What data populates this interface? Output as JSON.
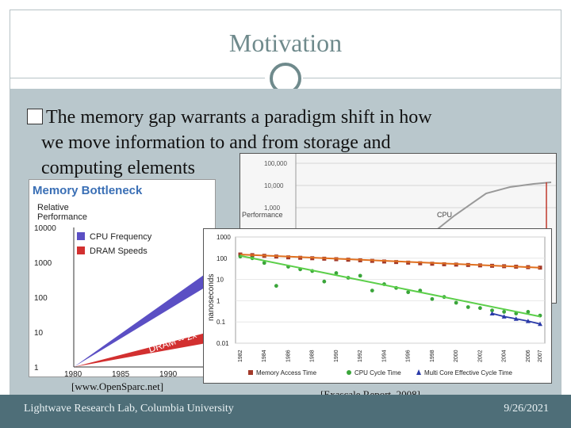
{
  "slide": {
    "title": "Motivation",
    "bullet_mark": "",
    "bullet_line1": "The memory gap warrants a paradigm shift in how",
    "bullet_line2": "we move information to and from storage and",
    "bullet_line3": "computing elements",
    "footer_left": "Lightwave Research Lab, Columbia University",
    "footer_right": "9/26/2021",
    "accent_color": "#6f8a8c",
    "footer_color": "#4e6e78"
  },
  "chart1": {
    "title": "Memory Bottleneck",
    "ylabel": "Relative Performance",
    "yticks": [
      "10000",
      "1000",
      "100",
      "10",
      "1"
    ],
    "xticks": [
      "1980",
      "1985",
      "1990"
    ],
    "legend": [
      "CPU Frequency",
      "DRAM Speeds"
    ],
    "annotations": {
      "cpu": "CPU -- 2x Every 2",
      "dram": "DRAM -- 2x"
    },
    "citation": "[www.OpenSparc.net]"
  },
  "chart2": {
    "yticks": [
      "100,000",
      "10,000",
      "1,000"
    ],
    "ylabel": "Performance",
    "series_label": "CPU"
  },
  "chart3": {
    "ylabel": "nanoseconds",
    "yticks": [
      "1000",
      "100",
      "10",
      "1",
      "0.1",
      "0.01"
    ],
    "xticks": [
      "1982",
      "1984",
      "1986",
      "1988",
      "1990",
      "1992",
      "1994",
      "1996",
      "1998",
      "2000",
      "2002",
      "2004",
      "2006",
      "2007"
    ],
    "legend": [
      "Memory Access Time",
      "CPU Cycle Time",
      "Multi Core Effective Cycle Time"
    ],
    "citation": "[Exascale Report, 2008]"
  },
  "chart_data": [
    {
      "type": "line",
      "title": "Memory Bottleneck",
      "ylabel": "Relative Performance",
      "x": [
        1980,
        1990
      ],
      "series": [
        {
          "name": "CPU Frequency",
          "values": [
            1,
            100
          ]
        },
        {
          "name": "DRAM Speeds",
          "values": [
            1,
            10
          ]
        }
      ],
      "yscale": "log",
      "ylim": [
        1,
        10000
      ]
    },
    {
      "type": "scatter",
      "ylabel": "nanoseconds",
      "x": [
        1982,
        1983,
        1984,
        1985,
        1986,
        1987,
        1988,
        1989,
        1990,
        1991,
        1992,
        1993,
        1994,
        1995,
        1996,
        1997,
        1998,
        1999,
        2000,
        2001,
        2002,
        2003,
        2004,
        2005,
        2006,
        2007
      ],
      "series": [
        {
          "name": "Memory Access Time",
          "values": [
            150,
            140,
            130,
            120,
            110,
            105,
            100,
            95,
            90,
            85,
            80,
            75,
            70,
            66,
            62,
            58,
            55,
            52,
            50,
            48,
            46,
            44,
            42,
            40,
            38,
            36
          ]
        },
        {
          "name": "CPU Cycle Time",
          "values": [
            120,
            100,
            60,
            5,
            40,
            30,
            25,
            8,
            20,
            12,
            15,
            3,
            6,
            4,
            2.5,
            3,
            1.2,
            1.5,
            0.8,
            0.5,
            0.45,
            0.35,
            0.3,
            0.25,
            0.3,
            0.2
          ]
        },
        {
          "name": "Multi Core Effective Cycle Time",
          "values": [
            null,
            null,
            null,
            null,
            null,
            null,
            null,
            null,
            null,
            null,
            null,
            null,
            null,
            null,
            null,
            null,
            null,
            null,
            null,
            null,
            null,
            0.25,
            0.18,
            0.14,
            0.11,
            0.08
          ]
        }
      ],
      "yscale": "log",
      "ylim": [
        0.01,
        1000
      ]
    }
  ]
}
